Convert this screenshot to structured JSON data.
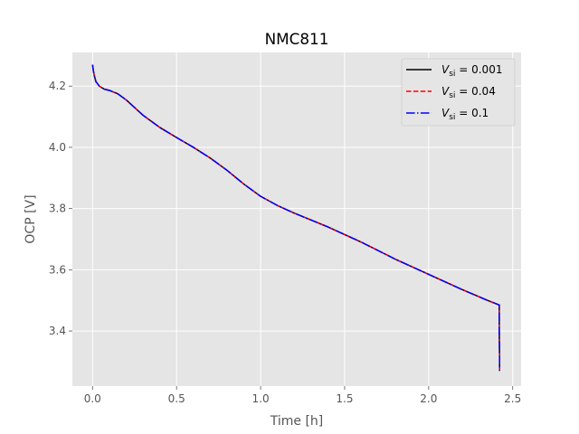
{
  "chart_data": {
    "type": "line",
    "title": "NMC811",
    "xlabel": "Time [h]",
    "ylabel": "OCP [V]",
    "xlim": [
      -0.12,
      2.55
    ],
    "ylim": [
      3.22,
      4.31
    ],
    "x_ticks": [
      0.0,
      0.5,
      1.0,
      1.5,
      2.0,
      2.5
    ],
    "x_tick_labels": [
      "0.0",
      "0.5",
      "1.0",
      "1.5",
      "2.0",
      "2.5"
    ],
    "y_ticks": [
      3.4,
      3.6,
      3.8,
      4.0,
      4.2
    ],
    "y_tick_labels": [
      "3.4",
      "3.6",
      "3.8",
      "4.0",
      "4.2"
    ],
    "grid": true,
    "legend_position": "top-right",
    "series": [
      {
        "name": "V_si = 0.001",
        "legend_symbol": "V",
        "legend_sub": "si",
        "legend_value": " = 0.001",
        "color": "#000000",
        "style": "solid",
        "x": [
          0.0,
          0.005,
          0.01,
          0.02,
          0.04,
          0.07,
          0.1,
          0.15,
          0.2,
          0.3,
          0.4,
          0.5,
          0.6,
          0.7,
          0.8,
          0.9,
          1.0,
          1.1,
          1.2,
          1.4,
          1.6,
          1.8,
          2.0,
          2.2,
          2.35,
          2.42,
          2.42,
          2.422,
          2.422
        ],
        "y": [
          4.27,
          4.25,
          4.235,
          4.215,
          4.2,
          4.19,
          4.186,
          4.175,
          4.155,
          4.105,
          4.065,
          4.032,
          4.0,
          3.965,
          3.925,
          3.88,
          3.84,
          3.81,
          3.785,
          3.74,
          3.69,
          3.635,
          3.585,
          3.535,
          3.5,
          3.485,
          3.4,
          3.32,
          3.27
        ]
      },
      {
        "name": "V_si = 0.04",
        "legend_symbol": "V",
        "legend_sub": "si",
        "legend_value": " = 0.04",
        "color": "#ff0000",
        "style": "dashed",
        "x": [
          0.0,
          0.005,
          0.01,
          0.02,
          0.04,
          0.07,
          0.1,
          0.15,
          0.2,
          0.3,
          0.4,
          0.5,
          0.6,
          0.7,
          0.8,
          0.9,
          1.0,
          1.1,
          1.2,
          1.4,
          1.6,
          1.8,
          2.0,
          2.2,
          2.35,
          2.42,
          2.42,
          2.422,
          2.422
        ],
        "y": [
          4.27,
          4.25,
          4.235,
          4.215,
          4.2,
          4.19,
          4.186,
          4.175,
          4.155,
          4.105,
          4.065,
          4.032,
          4.0,
          3.965,
          3.925,
          3.88,
          3.84,
          3.81,
          3.785,
          3.74,
          3.69,
          3.635,
          3.585,
          3.535,
          3.5,
          3.485,
          3.4,
          3.32,
          3.27
        ]
      },
      {
        "name": "V_si = 0.1",
        "legend_symbol": "V",
        "legend_sub": "si",
        "legend_value": " = 0.1",
        "color": "#0000ff",
        "style": "dashdot",
        "x": [
          0.0,
          0.005,
          0.01,
          0.02,
          0.04,
          0.07,
          0.1,
          0.15,
          0.2,
          0.3,
          0.4,
          0.5,
          0.6,
          0.7,
          0.8,
          0.9,
          1.0,
          1.1,
          1.2,
          1.4,
          1.6,
          1.8,
          2.0,
          2.2,
          2.35,
          2.42,
          2.42,
          2.422,
          2.422
        ],
        "y": [
          4.27,
          4.25,
          4.235,
          4.215,
          4.2,
          4.19,
          4.186,
          4.175,
          4.155,
          4.105,
          4.065,
          4.032,
          4.0,
          3.965,
          3.925,
          3.88,
          3.84,
          3.81,
          3.785,
          3.74,
          3.69,
          3.635,
          3.585,
          3.535,
          3.5,
          3.485,
          3.4,
          3.32,
          3.27
        ]
      }
    ]
  }
}
